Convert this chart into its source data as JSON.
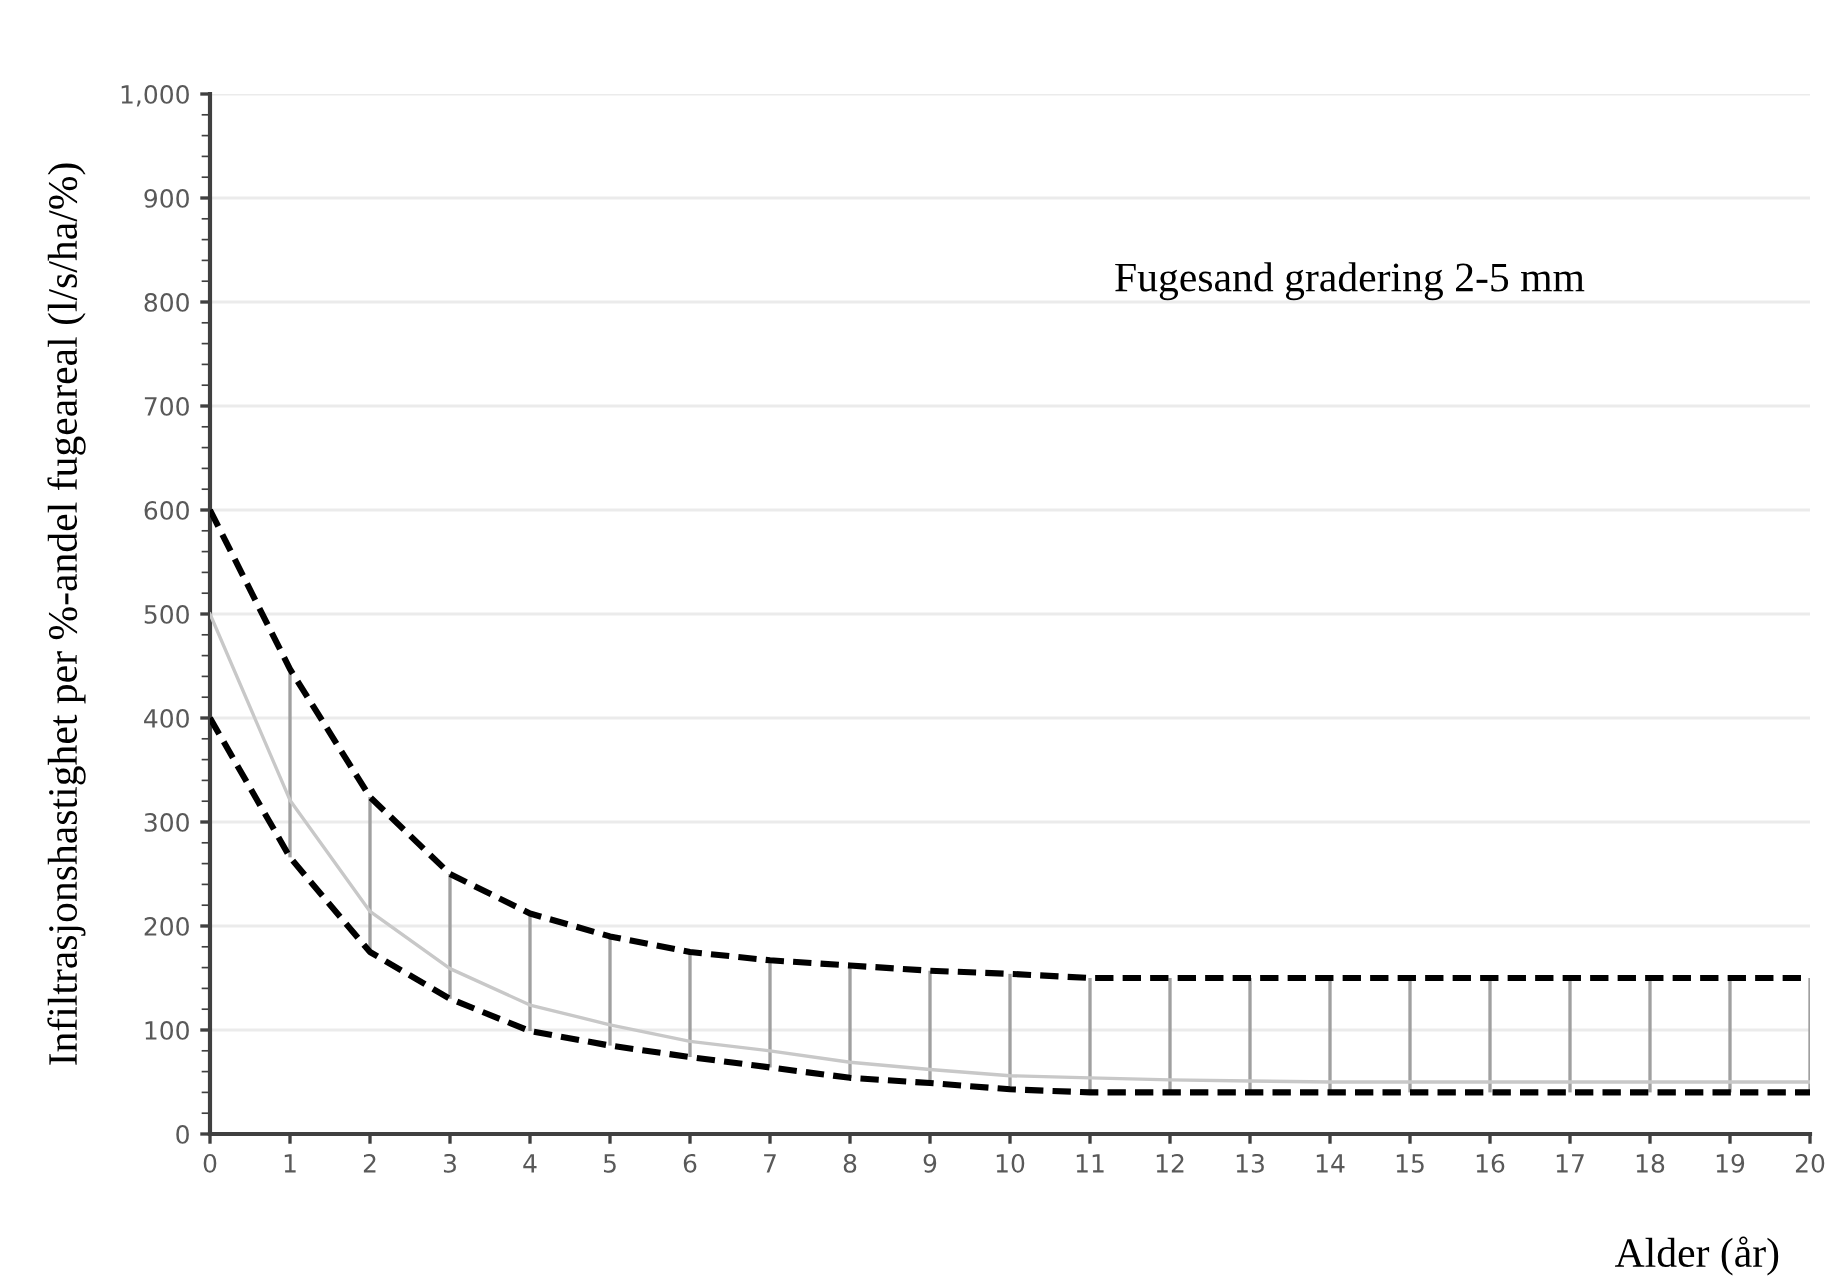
{
  "chart_data": {
    "type": "line",
    "ylabel": "Infiltrasjonshastighet per %-andel fugeareal (l/s/ha/%)",
    "xlabel": "Alder (år)",
    "annotations": [
      "Fugesand gradering 2-5 mm"
    ],
    "x": [
      0,
      1,
      2,
      3,
      4,
      5,
      6,
      7,
      8,
      9,
      10,
      11,
      12,
      13,
      14,
      15,
      16,
      17,
      18,
      19,
      20
    ],
    "series": [
      {
        "color": "#000000",
        "line_style": "dashed",
        "values": [
          600,
          447,
          324,
          250,
          212,
          190,
          175,
          167,
          162,
          157,
          154,
          150,
          150,
          150,
          150,
          150,
          150,
          150,
          150,
          150,
          150
        ]
      },
      {
        "color": "#000000",
        "line_style": "dashed",
        "values": [
          400,
          266,
          175,
          130,
          99,
          85,
          74,
          64,
          54,
          49,
          43,
          40,
          40,
          40,
          40,
          40,
          40,
          40,
          40,
          40,
          40
        ]
      },
      {
        "color": "#c8c8c8",
        "line_style": "solid",
        "values": [
          500,
          321,
          214,
          159,
          124,
          105,
          89,
          80,
          69,
          62,
          56,
          54,
          52,
          51,
          50,
          50,
          50,
          50,
          50,
          50,
          50
        ],
        "errors": [
          null,
          [
            266,
            447
          ],
          [
            175,
            324
          ],
          [
            130,
            250
          ],
          [
            99,
            212
          ],
          [
            85,
            190
          ],
          [
            74,
            175
          ],
          [
            64,
            167
          ],
          [
            54,
            162
          ],
          [
            49,
            157
          ],
          [
            43,
            154
          ],
          [
            40,
            150
          ],
          [
            40,
            150
          ],
          [
            40,
            150
          ],
          [
            40,
            150
          ],
          [
            40,
            150
          ],
          [
            40,
            150
          ],
          [
            40,
            150
          ],
          [
            40,
            150
          ],
          [
            40,
            150
          ],
          [
            40,
            150
          ]
        ]
      }
    ],
    "xlim": [
      0,
      20
    ],
    "xticks": [
      0,
      1,
      2,
      3,
      4,
      5,
      6,
      7,
      8,
      9,
      10,
      11,
      12,
      13,
      14,
      15,
      16,
      17,
      18,
      19,
      20
    ],
    "ylim": [
      0,
      1000
    ],
    "yticks": [
      0,
      100,
      200,
      300,
      400,
      500,
      600,
      700,
      800,
      900,
      {
        "value": 1000,
        "label": "1,000"
      }
    ],
    "grid": "y",
    "marker": "none"
  }
}
